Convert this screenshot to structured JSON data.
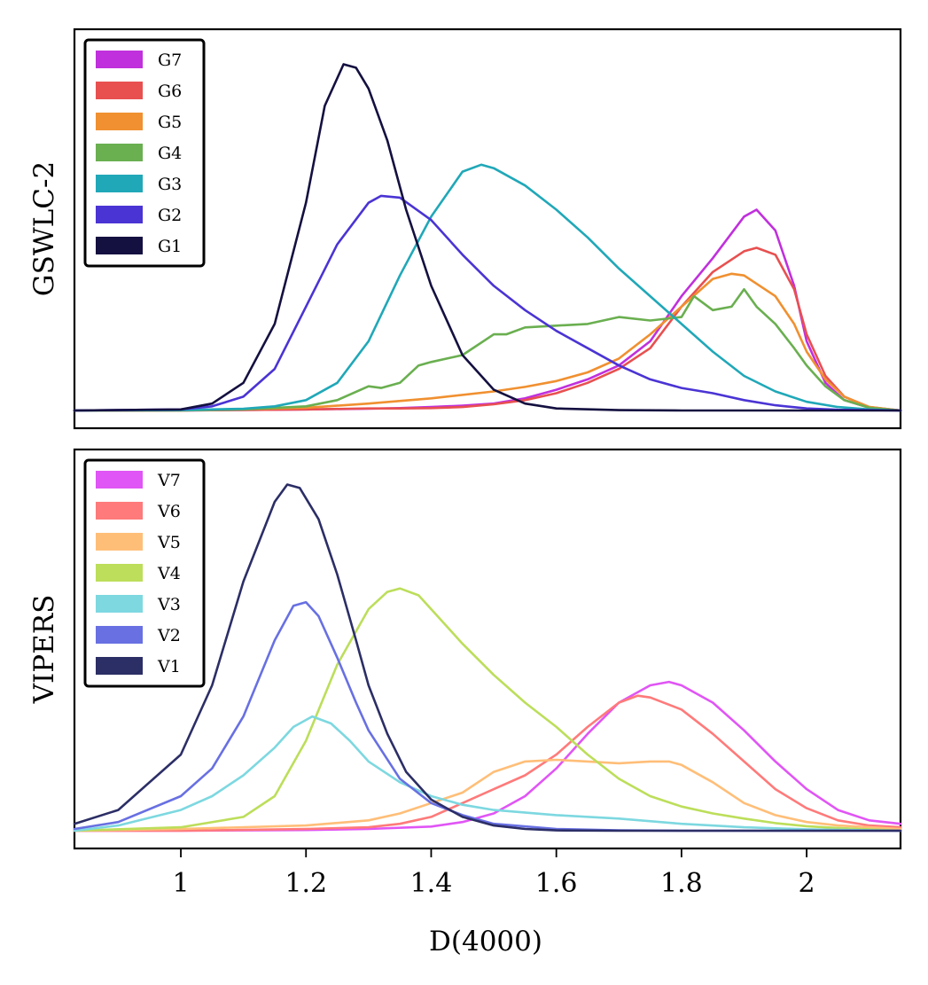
{
  "chart_data": [
    {
      "type": "line",
      "panel": "top",
      "ylabel": "GSWLC-2",
      "xlabel": "",
      "xlim": [
        0.83,
        2.15
      ],
      "ylim": [
        0,
        1.05
      ],
      "yticks": false,
      "legend_position": "top-left",
      "series": [
        {
          "name": "G7",
          "color": "#c030dc",
          "x": [
            0.83,
            1.0,
            1.2,
            1.3,
            1.35,
            1.4,
            1.45,
            1.5,
            1.55,
            1.6,
            1.65,
            1.7,
            1.75,
            1.8,
            1.85,
            1.9,
            1.92,
            1.95,
            1.98,
            2.0,
            2.03,
            2.06,
            2.1,
            2.15
          ],
          "y": [
            0,
            0,
            0.003,
            0.005,
            0.007,
            0.01,
            0.014,
            0.02,
            0.035,
            0.06,
            0.09,
            0.13,
            0.2,
            0.33,
            0.44,
            0.56,
            0.58,
            0.52,
            0.36,
            0.2,
            0.08,
            0.03,
            0.008,
            0
          ]
        },
        {
          "name": "G6",
          "color": "#e85050",
          "x": [
            0.83,
            1.0,
            1.2,
            1.3,
            1.35,
            1.4,
            1.45,
            1.5,
            1.55,
            1.6,
            1.65,
            1.7,
            1.75,
            1.8,
            1.85,
            1.9,
            1.92,
            1.95,
            1.98,
            2.0,
            2.03,
            2.06,
            2.1,
            2.15
          ],
          "y": [
            0,
            0,
            0.003,
            0.006,
            0.006,
            0.007,
            0.01,
            0.018,
            0.03,
            0.05,
            0.08,
            0.12,
            0.18,
            0.3,
            0.4,
            0.46,
            0.47,
            0.45,
            0.35,
            0.22,
            0.1,
            0.04,
            0.01,
            0
          ]
        },
        {
          "name": "G5",
          "color": "#f09030",
          "x": [
            0.83,
            1.0,
            1.2,
            1.3,
            1.4,
            1.5,
            1.55,
            1.6,
            1.65,
            1.7,
            1.75,
            1.8,
            1.85,
            1.88,
            1.9,
            1.95,
            1.98,
            2.0,
            2.03,
            2.06,
            2.1,
            2.15
          ],
          "y": [
            0,
            0,
            0.008,
            0.02,
            0.035,
            0.055,
            0.068,
            0.085,
            0.11,
            0.15,
            0.22,
            0.3,
            0.38,
            0.395,
            0.39,
            0.33,
            0.25,
            0.17,
            0.09,
            0.04,
            0.01,
            0
          ]
        },
        {
          "name": "G4",
          "color": "#6aaf50",
          "x": [
            0.83,
            1.0,
            1.1,
            1.2,
            1.25,
            1.3,
            1.32,
            1.35,
            1.38,
            1.4,
            1.45,
            1.5,
            1.52,
            1.55,
            1.6,
            1.65,
            1.7,
            1.75,
            1.8,
            1.82,
            1.85,
            1.88,
            1.9,
            1.92,
            1.95,
            1.98,
            2.0,
            2.03,
            2.06,
            2.1,
            2.15
          ],
          "y": [
            0,
            0,
            0.003,
            0.012,
            0.03,
            0.07,
            0.065,
            0.08,
            0.13,
            0.14,
            0.16,
            0.22,
            0.22,
            0.24,
            0.245,
            0.25,
            0.27,
            0.26,
            0.27,
            0.33,
            0.29,
            0.3,
            0.35,
            0.3,
            0.25,
            0.18,
            0.13,
            0.07,
            0.03,
            0.008,
            0
          ]
        },
        {
          "name": "G3",
          "color": "#20a8b8",
          "x": [
            0.83,
            1.0,
            1.1,
            1.15,
            1.2,
            1.25,
            1.3,
            1.35,
            1.4,
            1.45,
            1.48,
            1.5,
            1.55,
            1.6,
            1.65,
            1.7,
            1.75,
            1.8,
            1.85,
            1.9,
            1.95,
            2.0,
            2.05,
            2.1,
            2.15
          ],
          "y": [
            0,
            0.001,
            0.005,
            0.012,
            0.03,
            0.08,
            0.2,
            0.39,
            0.56,
            0.69,
            0.71,
            0.7,
            0.65,
            0.58,
            0.5,
            0.41,
            0.33,
            0.25,
            0.17,
            0.1,
            0.055,
            0.025,
            0.01,
            0.003,
            0
          ]
        },
        {
          "name": "G2",
          "color": "#4a34d4",
          "x": [
            0.83,
            1.0,
            1.05,
            1.1,
            1.15,
            1.2,
            1.25,
            1.3,
            1.32,
            1.35,
            1.4,
            1.45,
            1.5,
            1.55,
            1.6,
            1.65,
            1.7,
            1.75,
            1.8,
            1.85,
            1.9,
            1.95,
            2.0,
            2.05,
            2.1,
            2.15
          ],
          "y": [
            0,
            0.003,
            0.012,
            0.04,
            0.12,
            0.3,
            0.48,
            0.6,
            0.62,
            0.615,
            0.55,
            0.45,
            0.36,
            0.29,
            0.23,
            0.18,
            0.13,
            0.09,
            0.065,
            0.05,
            0.03,
            0.015,
            0.006,
            0.002,
            0.001,
            0
          ]
        },
        {
          "name": "G1",
          "color": "#141040",
          "x": [
            0.83,
            1.0,
            1.05,
            1.1,
            1.15,
            1.2,
            1.23,
            1.26,
            1.28,
            1.3,
            1.33,
            1.36,
            1.4,
            1.45,
            1.5,
            1.55,
            1.6,
            1.7,
            1.8,
            2.15
          ],
          "y": [
            0,
            0.003,
            0.02,
            0.08,
            0.25,
            0.6,
            0.88,
            1.0,
            0.99,
            0.93,
            0.78,
            0.58,
            0.36,
            0.16,
            0.06,
            0.02,
            0.006,
            0.001,
            0,
            0
          ]
        }
      ]
    },
    {
      "type": "line",
      "panel": "bottom",
      "ylabel": "VIPERS",
      "xlabel": "D(4000)",
      "xlim": [
        0.83,
        2.15
      ],
      "ylim": [
        0,
        1.05
      ],
      "xticks": [
        1,
        1.2,
        1.4,
        1.6,
        1.8,
        2
      ],
      "xtick_labels": [
        "1",
        "1.2",
        "1.4",
        "1.6",
        "1.8",
        "2"
      ],
      "yticks": false,
      "legend_position": "top-left",
      "series": [
        {
          "name": "V7",
          "color": "#e055f5",
          "x": [
            0.83,
            1.0,
            1.2,
            1.3,
            1.4,
            1.45,
            1.5,
            1.55,
            1.6,
            1.65,
            1.7,
            1.75,
            1.78,
            1.8,
            1.85,
            1.9,
            1.95,
            2.0,
            2.05,
            2.1,
            2.15
          ],
          "y": [
            0,
            0,
            0.002,
            0.005,
            0.012,
            0.025,
            0.05,
            0.1,
            0.18,
            0.28,
            0.37,
            0.42,
            0.43,
            0.42,
            0.37,
            0.29,
            0.2,
            0.12,
            0.06,
            0.03,
            0.02
          ]
        },
        {
          "name": "V6",
          "color": "#ff7a7a",
          "x": [
            0.83,
            1.0,
            1.2,
            1.3,
            1.35,
            1.4,
            1.45,
            1.5,
            1.55,
            1.6,
            1.65,
            1.7,
            1.73,
            1.75,
            1.8,
            1.85,
            1.9,
            1.95,
            2.0,
            2.05,
            2.1,
            2.15
          ],
          "y": [
            0,
            0,
            0.005,
            0.01,
            0.02,
            0.04,
            0.08,
            0.12,
            0.16,
            0.22,
            0.3,
            0.37,
            0.39,
            0.385,
            0.35,
            0.28,
            0.2,
            0.12,
            0.065,
            0.03,
            0.015,
            0.01
          ]
        },
        {
          "name": "V5",
          "color": "#ffbe78",
          "x": [
            0.83,
            1.0,
            1.2,
            1.3,
            1.35,
            1.4,
            1.45,
            1.5,
            1.55,
            1.6,
            1.65,
            1.7,
            1.75,
            1.78,
            1.8,
            1.85,
            1.9,
            1.95,
            2.0,
            2.05,
            2.1,
            2.15
          ],
          "y": [
            0,
            0.005,
            0.015,
            0.03,
            0.05,
            0.08,
            0.11,
            0.17,
            0.2,
            0.205,
            0.2,
            0.195,
            0.2,
            0.2,
            0.19,
            0.14,
            0.08,
            0.045,
            0.025,
            0.015,
            0.01,
            0.005
          ]
        },
        {
          "name": "V4",
          "color": "#bcde5a",
          "x": [
            0.83,
            1.0,
            1.1,
            1.15,
            1.2,
            1.25,
            1.3,
            1.33,
            1.35,
            1.38,
            1.4,
            1.45,
            1.5,
            1.55,
            1.6,
            1.65,
            1.7,
            1.75,
            1.8,
            1.85,
            1.9,
            1.95,
            2.0,
            2.05,
            2.1,
            2.15
          ],
          "y": [
            0,
            0.01,
            0.04,
            0.1,
            0.26,
            0.48,
            0.64,
            0.69,
            0.7,
            0.68,
            0.64,
            0.54,
            0.45,
            0.37,
            0.3,
            0.22,
            0.15,
            0.1,
            0.07,
            0.05,
            0.035,
            0.022,
            0.013,
            0.008,
            0.004,
            0
          ]
        },
        {
          "name": "V3",
          "color": "#7dd8e0",
          "x": [
            0.83,
            0.9,
            1.0,
            1.05,
            1.1,
            1.15,
            1.18,
            1.21,
            1.24,
            1.27,
            1.3,
            1.35,
            1.4,
            1.45,
            1.5,
            1.6,
            1.7,
            1.8,
            1.9,
            2.0,
            2.15
          ],
          "y": [
            0,
            0.015,
            0.06,
            0.1,
            0.16,
            0.24,
            0.3,
            0.33,
            0.31,
            0.26,
            0.2,
            0.14,
            0.1,
            0.075,
            0.06,
            0.045,
            0.035,
            0.02,
            0.01,
            0.004,
            0
          ]
        },
        {
          "name": "V2",
          "color": "#6870e2",
          "x": [
            0.83,
            0.9,
            1.0,
            1.05,
            1.1,
            1.15,
            1.18,
            1.2,
            1.22,
            1.25,
            1.28,
            1.3,
            1.35,
            1.4,
            1.45,
            1.5,
            1.6,
            1.7,
            1.8,
            2.15
          ],
          "y": [
            0.005,
            0.025,
            0.1,
            0.18,
            0.33,
            0.55,
            0.65,
            0.66,
            0.62,
            0.5,
            0.37,
            0.29,
            0.15,
            0.08,
            0.045,
            0.02,
            0.005,
            0.001,
            0,
            0
          ]
        },
        {
          "name": "V1",
          "color": "#2c2e66",
          "x": [
            0.83,
            0.9,
            1.0,
            1.05,
            1.1,
            1.15,
            1.17,
            1.19,
            1.22,
            1.25,
            1.28,
            1.3,
            1.33,
            1.36,
            1.4,
            1.45,
            1.5,
            1.55,
            1.6,
            1.7,
            2.15
          ],
          "y": [
            0.02,
            0.06,
            0.22,
            0.42,
            0.72,
            0.95,
            1.0,
            0.99,
            0.9,
            0.74,
            0.55,
            0.42,
            0.28,
            0.17,
            0.09,
            0.04,
            0.015,
            0.005,
            0.001,
            0,
            0
          ]
        }
      ]
    }
  ]
}
